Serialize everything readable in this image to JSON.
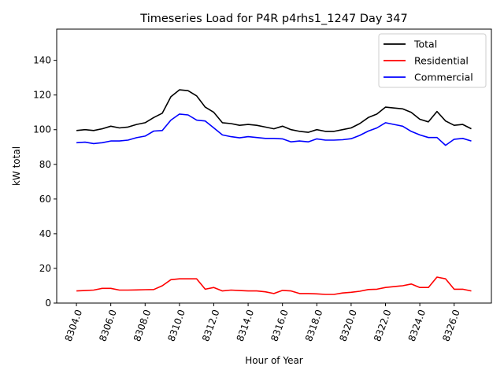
{
  "chart_data": {
    "type": "line",
    "title": "Timeseries Load for P4R p4rhs1_1247  Day 347",
    "xlabel": "Hour of Year",
    "ylabel": "kW total",
    "xlim": [
      8302.85,
      8328.17
    ],
    "ylim": [
      0,
      158
    ],
    "xticks": [
      8304,
      8306,
      8308,
      8310,
      8312,
      8314,
      8316,
      8318,
      8320,
      8322,
      8324,
      8326
    ],
    "xtick_labels": [
      "8304.0",
      "8306.0",
      "8308.0",
      "8310.0",
      "8312.0",
      "8314.0",
      "8316.0",
      "8318.0",
      "8320.0",
      "8322.0",
      "8324.0",
      "8326.0"
    ],
    "yticks": [
      0,
      20,
      40,
      60,
      80,
      100,
      120,
      140
    ],
    "ytick_labels": [
      "0",
      "20",
      "40",
      "60",
      "80",
      "100",
      "120",
      "140"
    ],
    "grid": false,
    "legend_placement": "top-right",
    "x_start": 8304,
    "x_step": 0.5,
    "series": [
      {
        "name": "Total",
        "color": "#000000",
        "values": [
          99.5,
          100,
          99.5,
          100.5,
          102,
          101,
          101.5,
          103,
          104,
          107,
          109.5,
          119,
          123,
          122.5,
          119.5,
          113,
          110,
          104,
          103.5,
          102.5,
          103,
          102.5,
          101.5,
          100.5,
          102,
          100,
          99,
          98.5,
          100,
          99,
          99,
          100,
          101,
          103.5,
          107,
          109,
          113,
          112.5,
          112,
          110,
          106,
          104.5,
          110.5,
          105,
          102.5,
          103,
          100.5
        ]
      },
      {
        "name": "Residential",
        "color": "#ff0000",
        "values": [
          7,
          7.2,
          7.5,
          8.5,
          8.5,
          7.5,
          7.5,
          7.6,
          7.7,
          7.8,
          10,
          13.5,
          14,
          14,
          14,
          8,
          9,
          7,
          7.5,
          7.2,
          7,
          7,
          6.5,
          5.5,
          7.3,
          7,
          5.5,
          5.5,
          5.3,
          5,
          5,
          5.8,
          6.2,
          6.8,
          7.8,
          8,
          9,
          9.5,
          10,
          11,
          9,
          9,
          15,
          14,
          8,
          8,
          7
        ]
      },
      {
        "name": "Commercial",
        "color": "#0000ff",
        "values": [
          92.5,
          92.8,
          92,
          92.5,
          93.5,
          93.5,
          94,
          95.4,
          96.3,
          99.2,
          99.5,
          105.5,
          109,
          108.5,
          105.5,
          105,
          101,
          97,
          96,
          95.3,
          96,
          95.5,
          95,
          95,
          94.7,
          93,
          93.5,
          93,
          94.7,
          94,
          94,
          94.2,
          94.8,
          96.7,
          99.2,
          101,
          104,
          103,
          102,
          99,
          97,
          95.5,
          95.5,
          91,
          94.5,
          95,
          93.5
        ]
      }
    ]
  }
}
